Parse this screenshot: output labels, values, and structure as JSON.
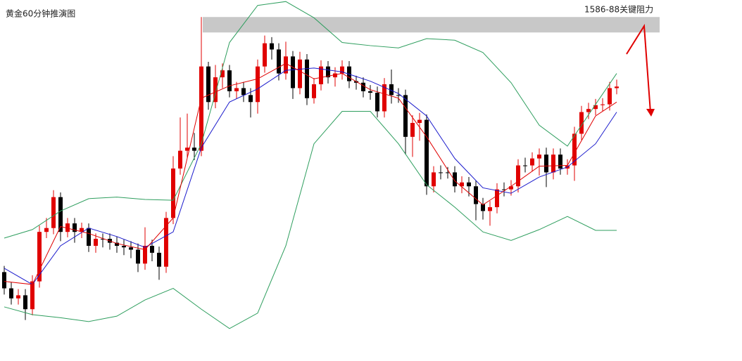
{
  "chart_data": {
    "type": "candlestick",
    "title": "黄金60分钟推演图",
    "annotation": "1586-88关键阻力",
    "resistance_band": [
      1586,
      1588
    ],
    "band_color": "#c8c8c8",
    "ylim": [
      1543.5,
      1590.2
    ],
    "up_color": "#e00000",
    "down_color": "#000000",
    "candles": {
      "open": [
        1555.0,
        1552.9,
        1551.6,
        1552.0,
        1550.2,
        1553.8,
        1560.2,
        1560.7,
        1564.7,
        1560.2,
        1561.3,
        1560.2,
        1560.7,
        1558.4,
        1559.3,
        1559.3,
        1558.8,
        1558.4,
        1558.2,
        1557.9,
        1556.1,
        1558.4,
        1557.5,
        1555.7,
        1562.0,
        1568.4,
        1570.7,
        1571.1,
        1570.7,
        1581.6,
        1577.0,
        1580.2,
        1581.1,
        1578.4,
        1578.8,
        1577.9,
        1577.0,
        1581.6,
        1584.6,
        1583.8,
        1580.7,
        1582.9,
        1578.8,
        1582.5,
        1577.5,
        1579.3,
        1581.6,
        1580.2,
        1580.7,
        1581.6,
        1579.7,
        1579.5,
        1578.4,
        1578.2,
        1575.8,
        1579.3,
        1577.9,
        1577.9,
        1572.5,
        1574.3,
        1574.7,
        1566.1,
        1567.9,
        1567.9,
        1567.9,
        1566.1,
        1566.6,
        1566.1,
        1563.8,
        1562.9,
        1563.4,
        1565.7,
        1565.7,
        1566.1,
        1568.8,
        1568.8,
        1569.7,
        1570.2,
        1567.9,
        1570.2,
        1568.4,
        1568.8,
        1572.9,
        1575.7,
        1576.1,
        1576.6,
        1576.7,
        1578.8
      ],
      "high": [
        1555.8,
        1553.7,
        1552.8,
        1552.8,
        1554.6,
        1561.0,
        1562.0,
        1565.6,
        1565.3,
        1562.0,
        1562.0,
        1561.4,
        1561.3,
        1560.0,
        1560.0,
        1560.0,
        1559.6,
        1559.2,
        1559.0,
        1558.7,
        1560.8,
        1559.2,
        1558.3,
        1562.8,
        1570.0,
        1575.0,
        1575.5,
        1573.0,
        1588.0,
        1582.2,
        1581.8,
        1582.0,
        1581.8,
        1579.6,
        1579.6,
        1578.8,
        1582.5,
        1585.6,
        1585.4,
        1584.6,
        1584.8,
        1583.6,
        1583.5,
        1583.2,
        1580.1,
        1582.4,
        1582.3,
        1581.5,
        1582.4,
        1582.3,
        1580.4,
        1580.2,
        1579.2,
        1579.0,
        1580.1,
        1581.2,
        1578.8,
        1578.6,
        1575.3,
        1575.6,
        1575.4,
        1568.7,
        1568.8,
        1568.6,
        1568.7,
        1567.4,
        1567.3,
        1566.9,
        1564.6,
        1564.2,
        1566.5,
        1566.6,
        1566.9,
        1569.6,
        1569.8,
        1570.5,
        1571.0,
        1571.1,
        1571.0,
        1571.0,
        1569.6,
        1573.8,
        1576.5,
        1576.9,
        1577.4,
        1577.5,
        1579.6,
        1579.9
      ],
      "low": [
        1552.1,
        1550.8,
        1550.8,
        1548.8,
        1549.4,
        1553.0,
        1559.4,
        1559.9,
        1559.0,
        1559.5,
        1558.8,
        1559.4,
        1557.6,
        1557.5,
        1558.2,
        1557.9,
        1557.5,
        1557.2,
        1556.8,
        1555.0,
        1555.3,
        1556.4,
        1554.0,
        1554.9,
        1561.2,
        1567.6,
        1569.8,
        1569.5,
        1570.0,
        1576.0,
        1576.2,
        1578.8,
        1577.6,
        1577.4,
        1577.0,
        1575.0,
        1575.5,
        1580.8,
        1582.5,
        1579.8,
        1579.9,
        1577.4,
        1578.0,
        1576.6,
        1576.8,
        1578.5,
        1579.4,
        1579.0,
        1579.9,
        1578.8,
        1578.6,
        1577.6,
        1577.3,
        1575.0,
        1575.0,
        1576.8,
        1576.9,
        1570.2,
        1569.9,
        1572.0,
        1565.0,
        1565.3,
        1567.0,
        1567.1,
        1565.3,
        1565.2,
        1564.8,
        1561.7,
        1561.8,
        1561.0,
        1562.6,
        1564.8,
        1564.9,
        1565.3,
        1567.9,
        1568.0,
        1567.5,
        1566.0,
        1567.0,
        1567.6,
        1567.6,
        1566.8,
        1572.1,
        1574.8,
        1575.3,
        1575.8,
        1575.9,
        1578.0
      ],
      "close": [
        1552.9,
        1551.6,
        1552.0,
        1550.2,
        1553.8,
        1560.2,
        1560.7,
        1564.7,
        1560.2,
        1561.3,
        1560.2,
        1560.7,
        1558.4,
        1559.3,
        1559.3,
        1558.8,
        1558.4,
        1558.2,
        1557.9,
        1556.1,
        1558.4,
        1557.5,
        1555.7,
        1562.0,
        1568.4,
        1570.7,
        1571.1,
        1570.7,
        1581.6,
        1577.0,
        1580.2,
        1581.1,
        1578.4,
        1578.8,
        1577.9,
        1577.0,
        1581.6,
        1584.6,
        1583.8,
        1580.7,
        1582.9,
        1578.8,
        1582.5,
        1577.5,
        1579.3,
        1581.6,
        1580.2,
        1580.7,
        1581.6,
        1579.7,
        1579.5,
        1578.4,
        1578.2,
        1575.8,
        1579.3,
        1577.9,
        1577.9,
        1572.5,
        1574.3,
        1574.7,
        1566.1,
        1567.9,
        1567.9,
        1567.9,
        1566.1,
        1566.6,
        1566.1,
        1563.8,
        1562.9,
        1563.4,
        1565.7,
        1565.7,
        1566.1,
        1568.8,
        1568.8,
        1569.7,
        1570.2,
        1567.9,
        1570.2,
        1568.4,
        1568.8,
        1572.9,
        1575.7,
        1576.1,
        1576.6,
        1576.7,
        1578.8,
        1579.0
      ]
    },
    "lines": [
      {
        "color": "#2e9e5e",
        "x": [
          0,
          4,
          8,
          12,
          16,
          20,
          24,
          28,
          32,
          36,
          40,
          44,
          48,
          52,
          56,
          60,
          64,
          68,
          72,
          76,
          80,
          84,
          87
        ],
        "values": [
          1559.4,
          1560.5,
          1562.9,
          1564.5,
          1564.7,
          1564.4,
          1564.3,
          1571.6,
          1584.7,
          1589.5,
          1590.0,
          1587.9,
          1584.7,
          1584.3,
          1584.0,
          1585.2,
          1585.0,
          1583.4,
          1579.5,
          1574.0,
          1571.3,
          1576.7,
          1580.7
        ]
      },
      {
        "color": "#2e9e5e",
        "x": [
          0,
          4,
          8,
          12,
          16,
          20,
          24,
          28,
          32,
          36,
          40,
          44,
          48,
          52,
          56,
          60,
          64,
          68,
          72,
          76,
          80,
          84,
          87
        ],
        "values": [
          1550.5,
          1549.5,
          1549.1,
          1548.6,
          1549.3,
          1551.4,
          1552.9,
          1550.2,
          1547.7,
          1549.7,
          1558.4,
          1571.6,
          1575.8,
          1575.8,
          1571.6,
          1566.3,
          1563.4,
          1560.2,
          1559.1,
          1560.5,
          1562.2,
          1560.4,
          1560.4
        ]
      },
      {
        "color": "#1a1acc",
        "x": [
          0,
          4,
          8,
          12,
          16,
          20,
          24,
          28,
          32,
          36,
          40,
          44,
          48,
          52,
          56,
          60,
          64,
          68,
          72,
          76,
          80,
          84,
          87
        ],
        "values": [
          1555.5,
          1553.4,
          1558.4,
          1560.7,
          1559.6,
          1558.2,
          1560.2,
          1571.1,
          1577.0,
          1578.7,
          1581.1,
          1581.4,
          1580.9,
          1579.7,
          1578.1,
          1575.2,
          1569.7,
          1565.9,
          1565.2,
          1567.3,
          1568.6,
          1571.6,
          1575.7
        ]
      },
      {
        "color": "#e00000",
        "x": [
          0,
          4,
          8,
          12,
          16,
          20,
          24,
          28,
          32,
          36,
          40,
          44,
          48,
          52,
          56,
          60,
          64,
          68,
          72,
          76,
          80,
          84,
          87
        ],
        "values": [
          1553.8,
          1553.4,
          1560.9,
          1560.0,
          1558.7,
          1557.9,
          1562.0,
          1577.5,
          1579.1,
          1580.0,
          1582.0,
          1580.0,
          1580.7,
          1578.6,
          1577.5,
          1572.5,
          1566.8,
          1563.7,
          1566.1,
          1568.7,
          1568.8,
          1575.2,
          1577.0
        ]
      }
    ]
  }
}
